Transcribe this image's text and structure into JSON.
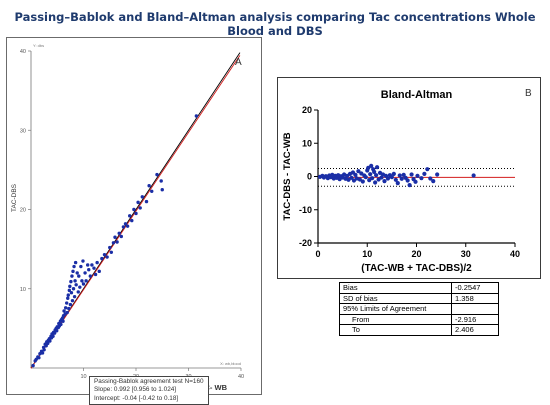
{
  "title": "Passing–Bablok and Bland–Altman analysis comparing Tac concentrations Whole Blood and DBS",
  "colors": {
    "points": "#1a2ea6",
    "identity": "#000000",
    "regression": "#d21c1c",
    "bias_line": "#d21c1c",
    "title": "#1f3b6e"
  },
  "chart_data": [
    {
      "type": "scatter",
      "panel_label": "A",
      "title": "",
      "xlabel": "TAC- WB",
      "ylabel": "TAC-DBS",
      "xlim": [
        0,
        40
      ],
      "ylim": [
        0,
        40
      ],
      "x_ticks": [
        "10",
        "20",
        "30",
        "40"
      ],
      "y_ticks": [
        "10",
        "20",
        "30",
        "40"
      ],
      "corner_labels": {
        "top": "Y: dbs",
        "bottom_right": "X: wb,blood"
      },
      "lines": [
        {
          "name": "identity",
          "slope": 1.0,
          "intercept": 0.0
        },
        {
          "name": "regression",
          "slope": 0.992,
          "intercept": -0.04
        }
      ],
      "points": [
        [
          0.4,
          0.3
        ],
        [
          0.8,
          0.9
        ],
        [
          1.0,
          1.1
        ],
        [
          1.3,
          1.4
        ],
        [
          1.5,
          1.3
        ],
        [
          1.7,
          1.8
        ],
        [
          2.0,
          2.1
        ],
        [
          2.2,
          1.9
        ],
        [
          2.4,
          2.6
        ],
        [
          2.5,
          2.3
        ],
        [
          2.7,
          3.0
        ],
        [
          2.9,
          2.8
        ],
        [
          3.0,
          3.3
        ],
        [
          3.2,
          3.1
        ],
        [
          3.3,
          3.5
        ],
        [
          3.5,
          3.7
        ],
        [
          3.6,
          3.4
        ],
        [
          3.8,
          4.0
        ],
        [
          3.9,
          3.8
        ],
        [
          4.0,
          4.3
        ],
        [
          4.2,
          4.0
        ],
        [
          4.3,
          4.5
        ],
        [
          4.5,
          4.4
        ],
        [
          4.6,
          4.8
        ],
        [
          4.8,
          5.0
        ],
        [
          4.9,
          4.7
        ],
        [
          5.0,
          5.2
        ],
        [
          5.2,
          5.1
        ],
        [
          5.3,
          5.6
        ],
        [
          5.4,
          5.3
        ],
        [
          5.6,
          5.9
        ],
        [
          5.7,
          5.5
        ],
        [
          5.8,
          6.1
        ],
        [
          6.0,
          6.3
        ],
        [
          6.1,
          5.9
        ],
        [
          6.2,
          6.6
        ],
        [
          6.3,
          7.2
        ],
        [
          6.5,
          6.8
        ],
        [
          6.6,
          7.6
        ],
        [
          6.8,
          8.2
        ],
        [
          6.9,
          7.0
        ],
        [
          7.0,
          8.8
        ],
        [
          7.1,
          9.2
        ],
        [
          7.2,
          7.5
        ],
        [
          7.3,
          9.8
        ],
        [
          7.4,
          10.3
        ],
        [
          7.5,
          8.0
        ],
        [
          7.6,
          10.9
        ],
        [
          7.7,
          9.5
        ],
        [
          7.8,
          11.6
        ],
        [
          7.9,
          8.5
        ],
        [
          8.0,
          12.2
        ],
        [
          8.1,
          10.0
        ],
        [
          8.2,
          12.8
        ],
        [
          8.3,
          9.0
        ],
        [
          8.4,
          11.0
        ],
        [
          8.5,
          13.3
        ],
        [
          8.6,
          10.5
        ],
        [
          8.8,
          12.0
        ],
        [
          9.0,
          9.6
        ],
        [
          9.1,
          11.6
        ],
        [
          9.3,
          10.2
        ],
        [
          9.5,
          12.8
        ],
        [
          9.7,
          11.0
        ],
        [
          9.9,
          13.5
        ],
        [
          10.0,
          10.6
        ],
        [
          10.3,
          12.0
        ],
        [
          10.5,
          11.0
        ],
        [
          10.8,
          13.0
        ],
        [
          11.0,
          12.4
        ],
        [
          11.3,
          11.6
        ],
        [
          11.6,
          13.0
        ],
        [
          12.0,
          12.6
        ],
        [
          12.3,
          11.8
        ],
        [
          12.6,
          13.3
        ],
        [
          13.0,
          12.2
        ],
        [
          13.5,
          13.8
        ],
        [
          14.0,
          14.3
        ],
        [
          14.5,
          14.0
        ],
        [
          15.0,
          15.2
        ],
        [
          15.3,
          14.6
        ],
        [
          15.7,
          15.8
        ],
        [
          16.0,
          16.5
        ],
        [
          16.4,
          15.9
        ],
        [
          16.8,
          17.0
        ],
        [
          17.2,
          16.6
        ],
        [
          17.6,
          17.8
        ],
        [
          18.0,
          18.2
        ],
        [
          18.4,
          17.9
        ],
        [
          18.8,
          19.2
        ],
        [
          19.2,
          18.6
        ],
        [
          19.6,
          20.0
        ],
        [
          20.0,
          19.5
        ],
        [
          20.4,
          20.9
        ],
        [
          20.8,
          20.2
        ],
        [
          21.2,
          21.6
        ],
        [
          22.0,
          21.0
        ],
        [
          22.5,
          23.0
        ],
        [
          23.0,
          22.3
        ],
        [
          24.0,
          24.4
        ],
        [
          24.8,
          23.6
        ],
        [
          25.0,
          22.5
        ],
        [
          31.5,
          31.8
        ]
      ],
      "annotation": {
        "lines": [
          "Passing-Bablok agreement test N=160",
          "Slope: 0.992 [0.956 to 1.024]",
          "Intercept: -0.04 [-0.42 to 0.18]"
        ]
      }
    },
    {
      "type": "scatter",
      "panel_label": "B",
      "title": "Bland-Altman",
      "xlabel": "(TAC-WB + TAC-DBS)/2",
      "ylabel": "TAC-DBS - TAC-WB",
      "xlim": [
        0,
        40
      ],
      "ylim": [
        -20,
        20
      ],
      "x_ticks": [
        "0",
        "10",
        "20",
        "30",
        "40"
      ],
      "y_ticks": [
        "-20",
        "-10",
        "0",
        "10",
        "20"
      ],
      "bias": -0.2547,
      "limits": [
        -2.916,
        2.406
      ],
      "points": [
        [
          0.4,
          -0.1
        ],
        [
          0.9,
          0.2
        ],
        [
          1.2,
          -0.3
        ],
        [
          1.6,
          0.1
        ],
        [
          2.0,
          -0.5
        ],
        [
          2.3,
          0.3
        ],
        [
          2.6,
          -0.2
        ],
        [
          2.9,
          0.5
        ],
        [
          3.2,
          -0.6
        ],
        [
          3.5,
          0.2
        ],
        [
          3.8,
          -0.4
        ],
        [
          4.1,
          0.4
        ],
        [
          4.4,
          -0.8
        ],
        [
          4.7,
          0.1
        ],
        [
          5.0,
          -0.3
        ],
        [
          5.3,
          0.6
        ],
        [
          5.6,
          -0.7
        ],
        [
          5.9,
          0.2
        ],
        [
          6.2,
          -1.0
        ],
        [
          6.5,
          0.8
        ],
        [
          6.8,
          -0.4
        ],
        [
          7.1,
          1.2
        ],
        [
          7.3,
          -1.2
        ],
        [
          7.6,
          0.5
        ],
        [
          7.9,
          -0.6
        ],
        [
          8.2,
          1.6
        ],
        [
          8.5,
          -0.9
        ],
        [
          8.8,
          0.9
        ],
        [
          9.1,
          -1.5
        ],
        [
          9.4,
          0.3
        ],
        [
          9.7,
          -0.2
        ],
        [
          10.0,
          1.8
        ],
        [
          10.2,
          2.6
        ],
        [
          10.4,
          -1.1
        ],
        [
          10.6,
          0.7
        ],
        [
          10.8,
          3.2
        ],
        [
          11.0,
          -0.5
        ],
        [
          11.2,
          2.2
        ],
        [
          11.4,
          1.4
        ],
        [
          11.6,
          -1.8
        ],
        [
          11.8,
          0.4
        ],
        [
          12.0,
          2.8
        ],
        [
          12.3,
          -0.9
        ],
        [
          12.6,
          1.1
        ],
        [
          12.9,
          -0.3
        ],
        [
          13.2,
          0.6
        ],
        [
          13.5,
          -1.4
        ],
        [
          13.8,
          0.2
        ],
        [
          14.2,
          -0.6
        ],
        [
          14.6,
          0.4
        ],
        [
          15.0,
          -0.2
        ],
        [
          15.4,
          0.8
        ],
        [
          15.8,
          -1.0
        ],
        [
          16.2,
          -2.0
        ],
        [
          16.6,
          0.3
        ],
        [
          17.0,
          -0.7
        ],
        [
          17.4,
          0.5
        ],
        [
          17.8,
          -0.4
        ],
        [
          18.2,
          -1.2
        ],
        [
          18.6,
          -2.6
        ],
        [
          19.0,
          0.6
        ],
        [
          19.4,
          -0.8
        ],
        [
          19.8,
          -1.6
        ],
        [
          20.2,
          0.2
        ],
        [
          21.0,
          -0.5
        ],
        [
          21.6,
          0.8
        ],
        [
          22.2,
          2.2
        ],
        [
          22.8,
          -0.6
        ],
        [
          23.4,
          -1.4
        ],
        [
          24.2,
          0.6
        ],
        [
          31.6,
          0.3
        ]
      ]
    }
  ],
  "stats_table": {
    "rows": [
      {
        "label": "Bias",
        "value": "-0.2547"
      },
      {
        "label": "SD of bias",
        "value": "1.358"
      },
      {
        "label": "95% Limits of Agreement",
        "value": ""
      },
      {
        "label": "From",
        "value": "-2.916"
      },
      {
        "label": "To",
        "value": "2.406"
      }
    ]
  }
}
